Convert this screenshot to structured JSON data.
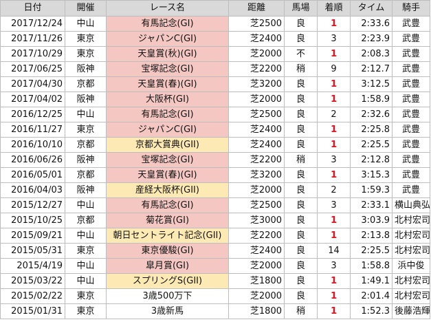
{
  "columns": [
    "日付",
    "開催",
    "レース名",
    "距離",
    "馬場",
    "着順",
    "タイム",
    "騎手"
  ],
  "grade_colors": {
    "G1": "#f4c7c3",
    "G2": "#fde9b4",
    "none": "#ffffff"
  },
  "rows": [
    {
      "date": "2017/12/24",
      "venue": "中山",
      "race": "有馬記念(GI)",
      "grade": "G1",
      "distance": "芝2500",
      "going": "良",
      "place": "1",
      "time": "2:33.6",
      "jockey": "武豊"
    },
    {
      "date": "2017/11/26",
      "venue": "東京",
      "race": "ジャパンC(GI)",
      "grade": "G1",
      "distance": "芝2400",
      "going": "良",
      "place": "3",
      "time": "2:23.9",
      "jockey": "武豊"
    },
    {
      "date": "2017/10/29",
      "venue": "東京",
      "race": "天皇賞(秋)(GI)",
      "grade": "G1",
      "distance": "芝2000",
      "going": "不",
      "place": "1",
      "time": "2:08.3",
      "jockey": "武豊"
    },
    {
      "date": "2017/06/25",
      "venue": "阪神",
      "race": "宝塚記念(GI)",
      "grade": "G1",
      "distance": "芝2200",
      "going": "稍",
      "place": "9",
      "time": "2:12.7",
      "jockey": "武豊"
    },
    {
      "date": "2017/04/30",
      "venue": "京都",
      "race": "天皇賞(春)(GI)",
      "grade": "G1",
      "distance": "芝3200",
      "going": "良",
      "place": "1",
      "time": "3:12.5",
      "jockey": "武豊"
    },
    {
      "date": "2017/04/02",
      "venue": "阪神",
      "race": "大阪杯(GI)",
      "grade": "G1",
      "distance": "芝2000",
      "going": "良",
      "place": "1",
      "time": "1:58.9",
      "jockey": "武豊"
    },
    {
      "date": "2016/12/25",
      "venue": "中山",
      "race": "有馬記念(GI)",
      "grade": "G1",
      "distance": "芝2500",
      "going": "良",
      "place": "2",
      "time": "2:32.6",
      "jockey": "武豊"
    },
    {
      "date": "2016/11/27",
      "venue": "東京",
      "race": "ジャパンC(GI)",
      "grade": "G1",
      "distance": "芝2400",
      "going": "良",
      "place": "1",
      "time": "2:25.8",
      "jockey": "武豊"
    },
    {
      "date": "2016/10/10",
      "venue": "京都",
      "race": "京都大賞典(GII)",
      "grade": "G2",
      "distance": "芝2400",
      "going": "良",
      "place": "1",
      "time": "2:25.5",
      "jockey": "武豊"
    },
    {
      "date": "2016/06/26",
      "venue": "阪神",
      "race": "宝塚記念(GI)",
      "grade": "G1",
      "distance": "芝2200",
      "going": "稍",
      "place": "3",
      "time": "2:12.8",
      "jockey": "武豊"
    },
    {
      "date": "2016/05/01",
      "venue": "京都",
      "race": "天皇賞(春)(GI)",
      "grade": "G1",
      "distance": "芝3200",
      "going": "良",
      "place": "1",
      "time": "3:15.3",
      "jockey": "武豊"
    },
    {
      "date": "2016/04/03",
      "venue": "阪神",
      "race": "産経大阪杯(GII)",
      "grade": "G2",
      "distance": "芝2000",
      "going": "良",
      "place": "2",
      "time": "1:59.3",
      "jockey": "武豊"
    },
    {
      "date": "2015/12/27",
      "venue": "中山",
      "race": "有馬記念(GI)",
      "grade": "G1",
      "distance": "芝2500",
      "going": "良",
      "place": "3",
      "time": "2:33.1",
      "jockey": "横山典弘"
    },
    {
      "date": "2015/10/25",
      "venue": "京都",
      "race": "菊花賞(GI)",
      "grade": "G1",
      "distance": "芝3000",
      "going": "良",
      "place": "1",
      "time": "3:03.9",
      "jockey": "北村宏司"
    },
    {
      "date": "2015/09/21",
      "venue": "中山",
      "race": "朝日セントライト記念(GII)",
      "grade": "G2",
      "distance": "芝2200",
      "going": "良",
      "place": "1",
      "time": "2:13.8",
      "jockey": "北村宏司"
    },
    {
      "date": "2015/05/31",
      "venue": "東京",
      "race": "東京優駿(GI)",
      "grade": "G1",
      "distance": "芝2400",
      "going": "良",
      "place": "14",
      "time": "2:25.5",
      "jockey": "北村宏司"
    },
    {
      "date": "2015/4/19",
      "venue": "中山",
      "race": "皐月賞(GI)",
      "grade": "G1",
      "distance": "芝2000",
      "going": "良",
      "place": "3",
      "time": "1:58.8",
      "jockey": "浜中俊"
    },
    {
      "date": "2015/03/22",
      "venue": "中山",
      "race": "スプリングS(GII)",
      "grade": "G2",
      "distance": "芝1800",
      "going": "良",
      "place": "1",
      "time": "1:49.1",
      "jockey": "北村宏司"
    },
    {
      "date": "2015/02/22",
      "venue": "東京",
      "race": "3歳500万下",
      "grade": "none",
      "distance": "芝2000",
      "going": "良",
      "place": "1",
      "time": "2:01.4",
      "jockey": "北村宏司"
    },
    {
      "date": "2015/01/31",
      "venue": "東京",
      "race": "3歳新馬",
      "grade": "none",
      "distance": "芝1800",
      "going": "稍",
      "place": "1",
      "time": "1:52.3",
      "jockey": "後藤浩輝"
    }
  ]
}
